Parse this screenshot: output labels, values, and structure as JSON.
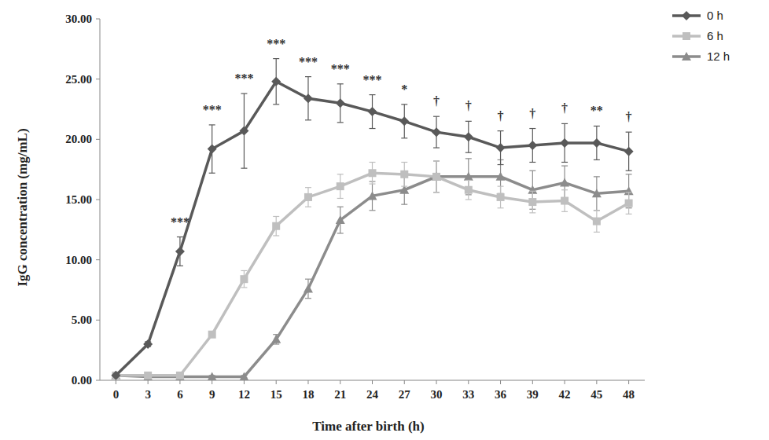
{
  "chart_data": {
    "type": "line",
    "x_label": "Time after birth (h)",
    "y_label": "IgG concentration (mg/mL)",
    "x": [
      0,
      3,
      6,
      9,
      12,
      15,
      18,
      21,
      24,
      27,
      30,
      33,
      36,
      39,
      42,
      45,
      48
    ],
    "xlim": [
      -1.5,
      49.5
    ],
    "xticks": [
      0,
      3,
      6,
      9,
      12,
      15,
      18,
      21,
      24,
      27,
      30,
      33,
      36,
      39,
      42,
      45,
      48
    ],
    "ylim": [
      0,
      30
    ],
    "yticks": [
      {
        "value": 0,
        "label": "0.00"
      },
      {
        "value": 5,
        "label": "5.00"
      },
      {
        "value": 10,
        "label": "10.00"
      },
      {
        "value": 15,
        "label": "15.00"
      },
      {
        "value": 20,
        "label": "20.00"
      },
      {
        "value": 25,
        "label": "25.00"
      },
      {
        "value": 30,
        "label": "30.00"
      }
    ],
    "grid": false,
    "legend": "right",
    "series": [
      {
        "name": "0 h",
        "color": "#595959",
        "marker": "diamond",
        "values": [
          0.4,
          3.0,
          10.7,
          19.2,
          20.7,
          24.8,
          23.4,
          23.0,
          22.3,
          21.5,
          20.6,
          20.2,
          19.3,
          19.5,
          19.7,
          19.7,
          19.0
        ],
        "errors": [
          0.1,
          0.2,
          1.2,
          2.0,
          3.1,
          1.9,
          1.8,
          1.6,
          1.4,
          1.4,
          1.3,
          1.3,
          1.4,
          1.4,
          1.6,
          1.4,
          1.6
        ]
      },
      {
        "name": "6 h",
        "color": "#bfbfbf",
        "marker": "square",
        "values": [
          0.4,
          0.4,
          0.4,
          3.8,
          8.4,
          12.8,
          15.2,
          16.1,
          17.2,
          17.1,
          16.9,
          15.8,
          15.2,
          14.8,
          14.9,
          13.2,
          14.7
        ],
        "errors": [
          0.1,
          0.1,
          0.1,
          0.2,
          0.7,
          0.8,
          0.8,
          1.0,
          0.9,
          1.0,
          1.3,
          0.8,
          0.9,
          0.9,
          0.9,
          0.9,
          0.9
        ]
      },
      {
        "name": "12 h",
        "color": "#8c8c8c",
        "marker": "triangle",
        "values": [
          0.4,
          0.3,
          0.3,
          0.3,
          0.3,
          3.4,
          7.6,
          13.3,
          15.3,
          15.8,
          16.9,
          16.9,
          16.9,
          15.8,
          16.4,
          15.5,
          15.7
        ],
        "errors": [
          0.1,
          0.1,
          0.1,
          0.1,
          0.1,
          0.4,
          0.8,
          1.1,
          1.2,
          1.2,
          1.3,
          1.5,
          1.4,
          1.6,
          1.4,
          1.4,
          1.4
        ]
      }
    ],
    "annotations": [
      {
        "x": 6,
        "text": "***"
      },
      {
        "x": 9,
        "text": "***"
      },
      {
        "x": 12,
        "text": "***"
      },
      {
        "x": 15,
        "text": "***"
      },
      {
        "x": 18,
        "text": "***"
      },
      {
        "x": 21,
        "text": "***"
      },
      {
        "x": 24,
        "text": "***"
      },
      {
        "x": 27,
        "text": "*"
      },
      {
        "x": 30,
        "text": "†"
      },
      {
        "x": 33,
        "text": "†"
      },
      {
        "x": 36,
        "text": "†"
      },
      {
        "x": 39,
        "text": "†"
      },
      {
        "x": 42,
        "text": "†"
      },
      {
        "x": 45,
        "text": "**"
      },
      {
        "x": 48,
        "text": "†"
      }
    ]
  }
}
